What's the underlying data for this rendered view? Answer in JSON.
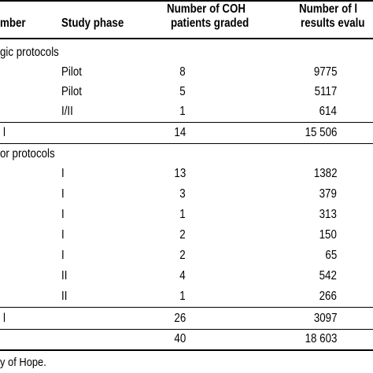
{
  "header": {
    "col_number": "mber",
    "col_phase": "Study phase",
    "col_graded": [
      "Number of COH",
      "patients graded"
    ],
    "col_results": [
      "Number of l",
      "results evalu"
    ]
  },
  "sections": [
    {
      "label": "gic protocols",
      "rows": [
        {
          "phase": "Pilot",
          "graded": "8",
          "results": "9775"
        },
        {
          "phase": "Pilot",
          "graded": "5",
          "results": "5117"
        },
        {
          "phase": "I/II",
          "graded": "1",
          "results": "614"
        }
      ],
      "subtotal": {
        "label": "l",
        "graded": "14",
        "results": "15 506"
      }
    },
    {
      "label": "or protocols",
      "rows": [
        {
          "phase": "I",
          "graded": "13",
          "results": "1382"
        },
        {
          "phase": "I",
          "graded": "3",
          "results": "379"
        },
        {
          "phase": "I",
          "graded": "1",
          "results": "313"
        },
        {
          "phase": "I",
          "graded": "2",
          "results": "150"
        },
        {
          "phase": "I",
          "graded": "2",
          "results": "65"
        },
        {
          "phase": "II",
          "graded": "4",
          "results": "542"
        },
        {
          "phase": "II",
          "graded": "1",
          "results": "266"
        }
      ],
      "subtotal": {
        "label": "l",
        "graded": "26",
        "results": "3097"
      }
    }
  ],
  "total": {
    "graded": "40",
    "results": "18 603"
  },
  "footnote": "y of Hope."
}
